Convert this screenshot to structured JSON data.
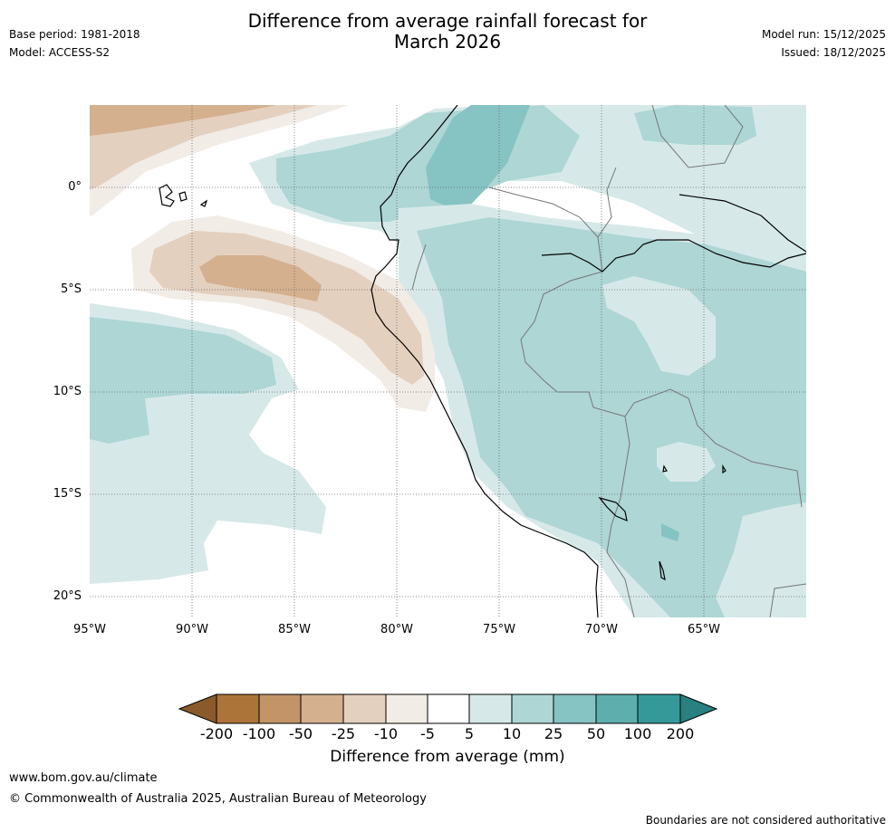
{
  "title_line1": "Difference from average rainfall forecast for",
  "title_line2": "March 2026",
  "meta": {
    "base_period": "Base period: 1981-2018",
    "model": "Model: ACCESS-S2",
    "model_run": "Model run: 15/12/2025",
    "issued": "Issued: 18/12/2025"
  },
  "axes": {
    "lat_labels": [
      "0°",
      "5°S",
      "10°S",
      "15°S",
      "20°S"
    ],
    "lon_labels": [
      "95°W",
      "90°W",
      "85°W",
      "80°W",
      "75°W",
      "70°W",
      "65°W"
    ]
  },
  "colorbar": {
    "title": "Difference from average (mm)",
    "tick_labels": [
      "-200",
      "-100",
      "-50",
      "-25",
      "-10",
      "-5",
      "5",
      "10",
      "25",
      "50",
      "100",
      "200"
    ],
    "colors": [
      "#8a5a2b",
      "#ad7439",
      "#c29467",
      "#d4b08e",
      "#e4d0bf",
      "#f2ece6",
      "#ffffff",
      "#d6e9e8",
      "#add6d5",
      "#86c3c3",
      "#5faeae",
      "#35999a",
      "#2a7f80"
    ]
  },
  "footer": {
    "url": "www.bom.gov.au/climate",
    "copyright": "© Commonwealth of Australia 2025, Australian Bureau of Meteorology",
    "note": "Boundaries are not considered authoritative"
  }
}
